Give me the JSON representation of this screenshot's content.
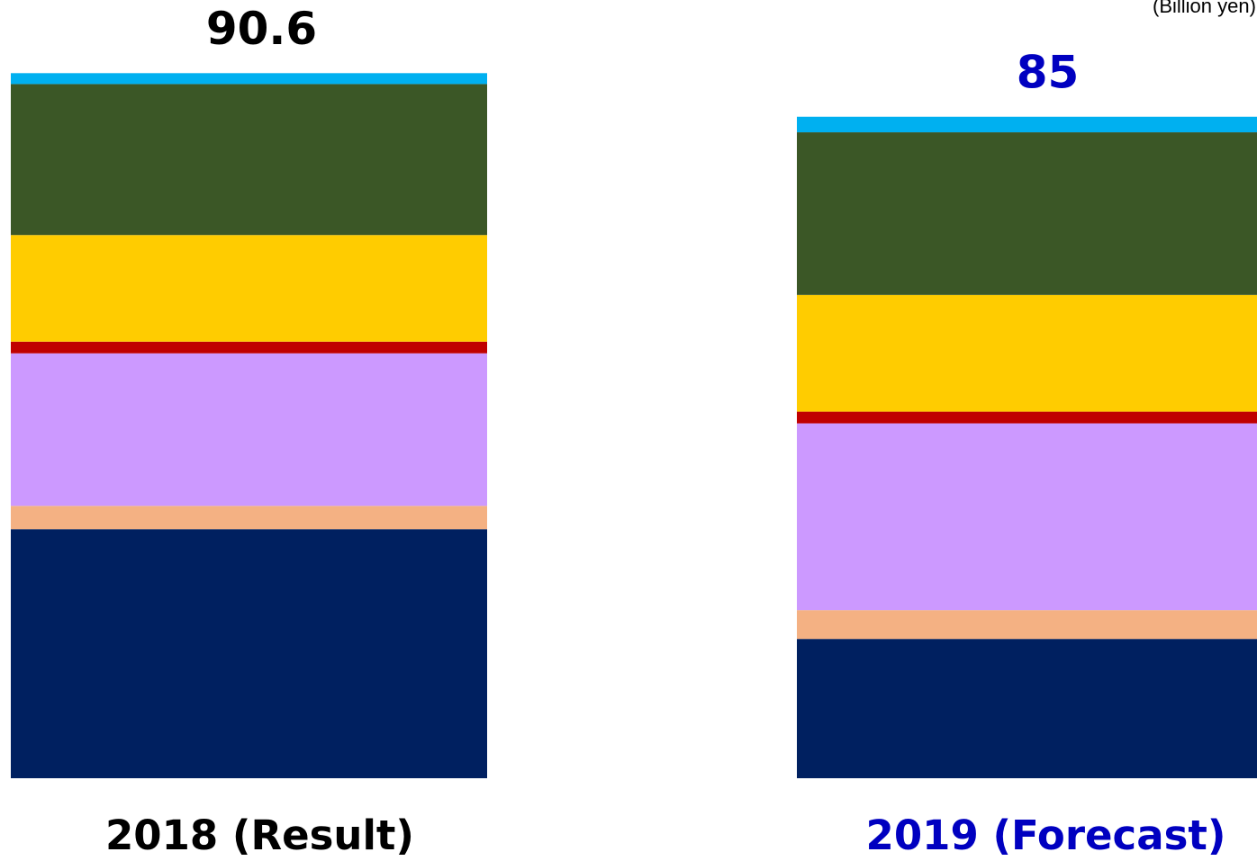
{
  "chart_data": {
    "type": "stacked_bar",
    "unit": "(Billion yen)",
    "categories": [
      "2018 (Result)",
      "2019 (Forecast)"
    ],
    "category_colors": [
      "#000000",
      "#0000c0"
    ],
    "totals": [
      90.6,
      85
    ],
    "ylim": [
      0,
      100
    ],
    "series": [
      {
        "color": "#002060",
        "values": [
          32.0,
          17.9
        ]
      },
      {
        "color": "#f4b183",
        "values": [
          3.0,
          3.7
        ]
      },
      {
        "color": "#cc99ff",
        "values": [
          19.6,
          24.0
        ]
      },
      {
        "color": "#c00000",
        "values": [
          1.5,
          1.5
        ]
      },
      {
        "color": "#ffcc00",
        "values": [
          13.7,
          15.0
        ]
      },
      {
        "color": "#3b5726",
        "values": [
          19.4,
          20.9
        ]
      },
      {
        "color": "#00b0f0",
        "values": [
          1.4,
          2.0
        ]
      }
    ]
  }
}
